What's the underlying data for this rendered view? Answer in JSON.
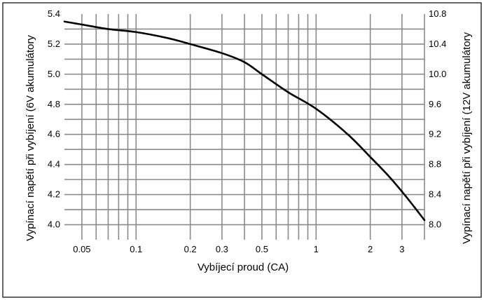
{
  "chart_data": {
    "type": "line",
    "xlabel": "Vybíjecí proud (CA)",
    "ylabel": "Vypínací napětí při vybíjení (6V akumulátory",
    "ylabel_right": "Vypínací napětí při vybíjení (12V akumulátory",
    "x_scale": "log",
    "xlim": [
      0.04,
      4
    ],
    "ylim": [
      3.9,
      5.4
    ],
    "y2lim": [
      7.8,
      10.8
    ],
    "x_tick_values": [
      0.05,
      0.1,
      0.2,
      0.3,
      0.5,
      1,
      2,
      3
    ],
    "x_tick_labels": [
      "0.05",
      "0.1",
      "0.2",
      "0.3",
      "0.5",
      "1",
      "2",
      "3"
    ],
    "y_tick_values": [
      4.0,
      4.2,
      4.4,
      4.6,
      4.8,
      5.0,
      5.2,
      5.4
    ],
    "y_tick_labels": [
      "4.0",
      "4.2",
      "4.4",
      "4.6",
      "4.8",
      "5.0",
      "5.2",
      "5.4"
    ],
    "y2_tick_values": [
      8.0,
      8.4,
      8.8,
      9.2,
      9.6,
      10.0,
      10.4,
      10.8
    ],
    "y2_tick_labels": [
      "8.0",
      "8.4",
      "8.8",
      "9.2",
      "9.6",
      "10.0",
      "10.4",
      "10.8"
    ],
    "x_grid_values": [
      0.05,
      0.06,
      0.07,
      0.08,
      0.09,
      0.1,
      0.2,
      0.3,
      0.4,
      0.5,
      0.6,
      0.7,
      0.8,
      0.9,
      1,
      2,
      3,
      4
    ],
    "y_grid_values": [
      4.0,
      4.1,
      4.2,
      4.3,
      4.4,
      4.5,
      4.6,
      4.7,
      4.8,
      4.9,
      5.0,
      5.1,
      5.2,
      5.3
    ],
    "grid": true,
    "series": [
      {
        "x": [
          0.04,
          0.05,
          0.07,
          0.1,
          0.15,
          0.2,
          0.3,
          0.4,
          0.5,
          0.7,
          1.0,
          1.5,
          2.0,
          2.5,
          3.0,
          3.5,
          4.0
        ],
        "y": [
          5.35,
          5.33,
          5.3,
          5.28,
          5.24,
          5.2,
          5.14,
          5.08,
          5.0,
          4.88,
          4.77,
          4.6,
          4.45,
          4.33,
          4.22,
          4.12,
          4.03
        ]
      }
    ],
    "colors": {
      "grid": "#8a8a8a",
      "line": "#000000",
      "frame": "#000000",
      "background": "#ffffff"
    }
  }
}
